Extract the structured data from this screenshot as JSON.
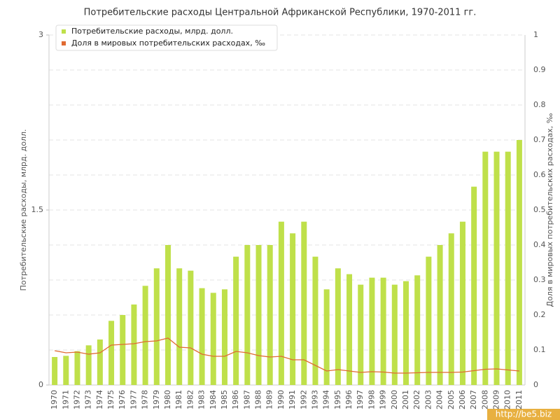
{
  "chart_data": {
    "type": "bar_line",
    "title": "Потребительские расходы Центральной Африканской Республики, 1970-2011 гг.",
    "y_label": "Потребительские расходы, млрд. долл.",
    "y2_label": "Доля в мировых потребительских расходах, ‰",
    "watermark": "http://be5.biz",
    "categories": [
      "1970",
      "1971",
      "1972",
      "1973",
      "1974",
      "1975",
      "1976",
      "1977",
      "1978",
      "1979",
      "1980",
      "1981",
      "1982",
      "1983",
      "1984",
      "1985",
      "1986",
      "1987",
      "1988",
      "1989",
      "1990",
      "1991",
      "1992",
      "1993",
      "1994",
      "1995",
      "1996",
      "1997",
      "1998",
      "1999",
      "2000",
      "2001",
      "2002",
      "2003",
      "2004",
      "2005",
      "2006",
      "2007",
      "2008",
      "2009",
      "2010",
      "2011"
    ],
    "series": [
      {
        "name": "Потребительские расходы, млрд. долл.",
        "color": "#bfe04a",
        "kind": "bar",
        "values": [
          0.24,
          0.25,
          0.29,
          0.34,
          0.39,
          0.55,
          0.6,
          0.69,
          0.85,
          1.0,
          1.2,
          1.0,
          0.98,
          0.83,
          0.79,
          0.82,
          1.1,
          1.2,
          1.2,
          1.2,
          1.4,
          1.3,
          1.4,
          1.1,
          0.82,
          1.0,
          0.95,
          0.86,
          0.92,
          0.92,
          0.86,
          0.89,
          0.94,
          1.1,
          1.2,
          1.3,
          1.4,
          1.7,
          2.0,
          2.0,
          2.0,
          2.1
        ]
      },
      {
        "name": "Доля в мировых потребительских расходах, ‰",
        "color": "#e06a32",
        "kind": "line",
        "axis": "y2",
        "values": [
          0.098,
          0.092,
          0.094,
          0.088,
          0.092,
          0.114,
          0.116,
          0.118,
          0.124,
          0.126,
          0.134,
          0.108,
          0.106,
          0.088,
          0.082,
          0.082,
          0.096,
          0.092,
          0.084,
          0.08,
          0.082,
          0.072,
          0.072,
          0.056,
          0.04,
          0.044,
          0.04,
          0.036,
          0.038,
          0.037,
          0.034,
          0.034,
          0.035,
          0.036,
          0.036,
          0.036,
          0.037,
          0.041,
          0.045,
          0.046,
          0.043,
          0.04
        ]
      }
    ],
    "ylim": [
      0,
      3
    ],
    "yticks": [
      0,
      1.5,
      3
    ],
    "y2lim": [
      0,
      1
    ],
    "y2ticks": [
      0,
      0.1,
      0.2,
      0.3,
      0.4,
      0.5,
      0.6,
      0.7,
      0.8,
      0.9,
      1
    ],
    "grid": true
  }
}
